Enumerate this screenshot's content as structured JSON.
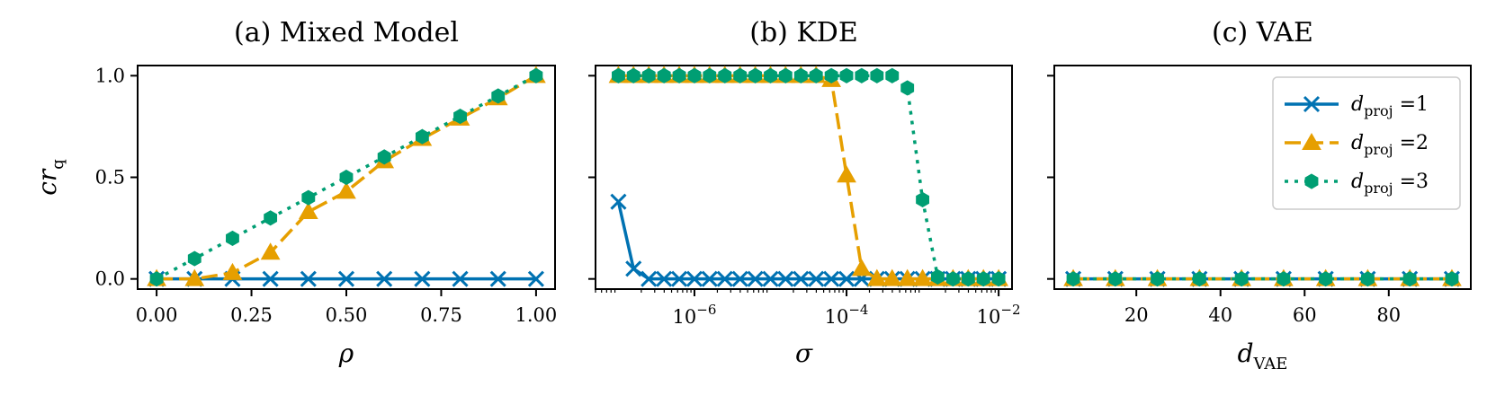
{
  "colors": {
    "d1": "#0072b2",
    "d2": "#e69f00",
    "d3": "#009e73"
  },
  "legend": {
    "placement": "top-right",
    "entries": [
      {
        "prefix": "d",
        "sub": "proj",
        "suffix": " =1",
        "series": 0,
        "color": "#0072b2",
        "marker": "x",
        "dash": "solid"
      },
      {
        "prefix": "d",
        "sub": "proj",
        "suffix": " =2",
        "series": 1,
        "color": "#e69f00",
        "marker": "triangle",
        "dash": "dashed"
      },
      {
        "prefix": "d",
        "sub": "proj",
        "suffix": " =3",
        "series": 2,
        "color": "#009e73",
        "marker": "hexagon",
        "dash": "dotted"
      }
    ]
  },
  "chart_data": [
    {
      "type": "line",
      "title": "(a) Mixed Model",
      "xlabel": "ρ",
      "ylabel": {
        "main": "cr",
        "sub": "q"
      },
      "xscale": "linear",
      "xlim": [
        -0.05,
        1.05
      ],
      "ylim": [
        -0.05,
        1.05
      ],
      "xticks": [
        0,
        0.25,
        0.5,
        0.75,
        1.0
      ],
      "xtick_labels": [
        "0.00",
        "0.25",
        "0.50",
        "0.75",
        "1.00"
      ],
      "yticks": [
        0,
        0.5,
        1.0
      ],
      "ytick_labels": [
        "0.0",
        "0.5",
        "1.0"
      ],
      "show_ytick_labels": true,
      "series": [
        {
          "name": "d_proj =1",
          "x": [
            0,
            0.1,
            0.2,
            0.3,
            0.4,
            0.5,
            0.6,
            0.7,
            0.8,
            0.9,
            1.0
          ],
          "y": [
            0,
            0,
            0,
            0,
            0,
            0,
            0,
            0,
            0,
            0,
            0
          ]
        },
        {
          "name": "d_proj =2",
          "x": [
            0,
            0.1,
            0.2,
            0.3,
            0.4,
            0.5,
            0.6,
            0.7,
            0.8,
            0.9,
            1.0
          ],
          "y": [
            0,
            0,
            0.03,
            0.13,
            0.33,
            0.43,
            0.58,
            0.69,
            0.79,
            0.89,
            1.0
          ]
        },
        {
          "name": "d_proj =3",
          "x": [
            0,
            0.1,
            0.2,
            0.3,
            0.4,
            0.5,
            0.6,
            0.7,
            0.8,
            0.9,
            1.0
          ],
          "y": [
            0,
            0.1,
            0.2,
            0.3,
            0.4,
            0.5,
            0.6,
            0.7,
            0.8,
            0.9,
            1.0
          ]
        }
      ]
    },
    {
      "type": "line",
      "title": "(b) KDE",
      "xlabel": "σ",
      "xscale": "log",
      "xlim": [
        5e-08,
        0.015
      ],
      "ylim": [
        -0.05,
        1.05
      ],
      "xticks": [
        1e-06,
        0.0001,
        0.01
      ],
      "xtick_labels": [
        {
          "base": "10",
          "exp": "−6"
        },
        {
          "base": "10",
          "exp": "−4"
        },
        {
          "base": "10",
          "exp": "−2"
        }
      ],
      "yticks": [
        0,
        0.5,
        1.0
      ],
      "show_ytick_labels": false,
      "series": [
        {
          "name": "d_proj =1",
          "x": [
            1e-07,
            1.58e-07,
            2.51e-07,
            3.98e-07,
            6.31e-07,
            1e-06,
            1.58e-06,
            2.51e-06,
            3.98e-06,
            6.31e-06,
            1e-05,
            1.58e-05,
            2.51e-05,
            3.98e-05,
            6.31e-05,
            0.0001,
            0.000158,
            0.000251,
            0.000398,
            0.000631,
            0.001,
            0.00158,
            0.00251,
            0.00398,
            0.00631,
            0.01
          ],
          "y": [
            0.38,
            0.05,
            0,
            0,
            0,
            0,
            0,
            0,
            0,
            0,
            0,
            0,
            0,
            0,
            0,
            0,
            0,
            0,
            0,
            0,
            0,
            0,
            0,
            0,
            0,
            0
          ]
        },
        {
          "name": "d_proj =2",
          "x": [
            1e-07,
            1.58e-07,
            2.51e-07,
            3.98e-07,
            6.31e-07,
            1e-06,
            1.58e-06,
            2.51e-06,
            3.98e-06,
            6.31e-06,
            1e-05,
            1.58e-05,
            2.51e-05,
            3.98e-05,
            6.31e-05,
            0.0001,
            0.000158,
            0.000251,
            0.000398,
            0.000631,
            0.001,
            0.00158,
            0.00251,
            0.00398,
            0.00631,
            0.01
          ],
          "y": [
            1,
            1,
            1,
            1,
            1,
            1,
            1,
            1,
            1,
            1,
            1,
            1,
            1,
            1,
            0.98,
            0.51,
            0.05,
            0,
            0,
            0,
            0,
            0,
            0,
            0,
            0,
            0
          ]
        },
        {
          "name": "d_proj =3",
          "x": [
            1e-07,
            1.58e-07,
            2.51e-07,
            3.98e-07,
            6.31e-07,
            1e-06,
            1.58e-06,
            2.51e-06,
            3.98e-06,
            6.31e-06,
            1e-05,
            1.58e-05,
            2.51e-05,
            3.98e-05,
            6.31e-05,
            0.0001,
            0.000158,
            0.000251,
            0.000398,
            0.000631,
            0.001,
            0.00158,
            0.00251,
            0.00398,
            0.00631,
            0.01
          ],
          "y": [
            1,
            1,
            1,
            1,
            1,
            1,
            1,
            1,
            1,
            1,
            1,
            1,
            1,
            1,
            1,
            1,
            1,
            1,
            1,
            0.94,
            0.39,
            0.01,
            0,
            0,
            0,
            0
          ]
        }
      ]
    },
    {
      "type": "line",
      "title": "(c) VAE",
      "xlabel": {
        "main": "d",
        "sub": "VAE"
      },
      "xscale": "linear",
      "xlim": [
        0.5,
        99.5
      ],
      "ylim": [
        -0.05,
        1.05
      ],
      "xticks": [
        20,
        40,
        60,
        80
      ],
      "xtick_labels": [
        "20",
        "40",
        "60",
        "80"
      ],
      "yticks": [
        0,
        0.5,
        1.0
      ],
      "show_ytick_labels": false,
      "series": [
        {
          "name": "d_proj =1",
          "x": [
            5,
            15,
            25,
            35,
            45,
            55,
            65,
            75,
            85,
            95
          ],
          "y": [
            0,
            0,
            0,
            0,
            0,
            0,
            0,
            0,
            0,
            0
          ]
        },
        {
          "name": "d_proj =2",
          "x": [
            5,
            15,
            25,
            35,
            45,
            55,
            65,
            75,
            85,
            95
          ],
          "y": [
            0,
            0,
            0,
            0,
            0,
            0,
            0,
            0,
            0,
            0
          ]
        },
        {
          "name": "d_proj =3",
          "x": [
            5,
            15,
            25,
            35,
            45,
            55,
            65,
            75,
            85,
            95
          ],
          "y": [
            0,
            0,
            0,
            0,
            0,
            0,
            0,
            0,
            0,
            0
          ]
        }
      ]
    }
  ]
}
